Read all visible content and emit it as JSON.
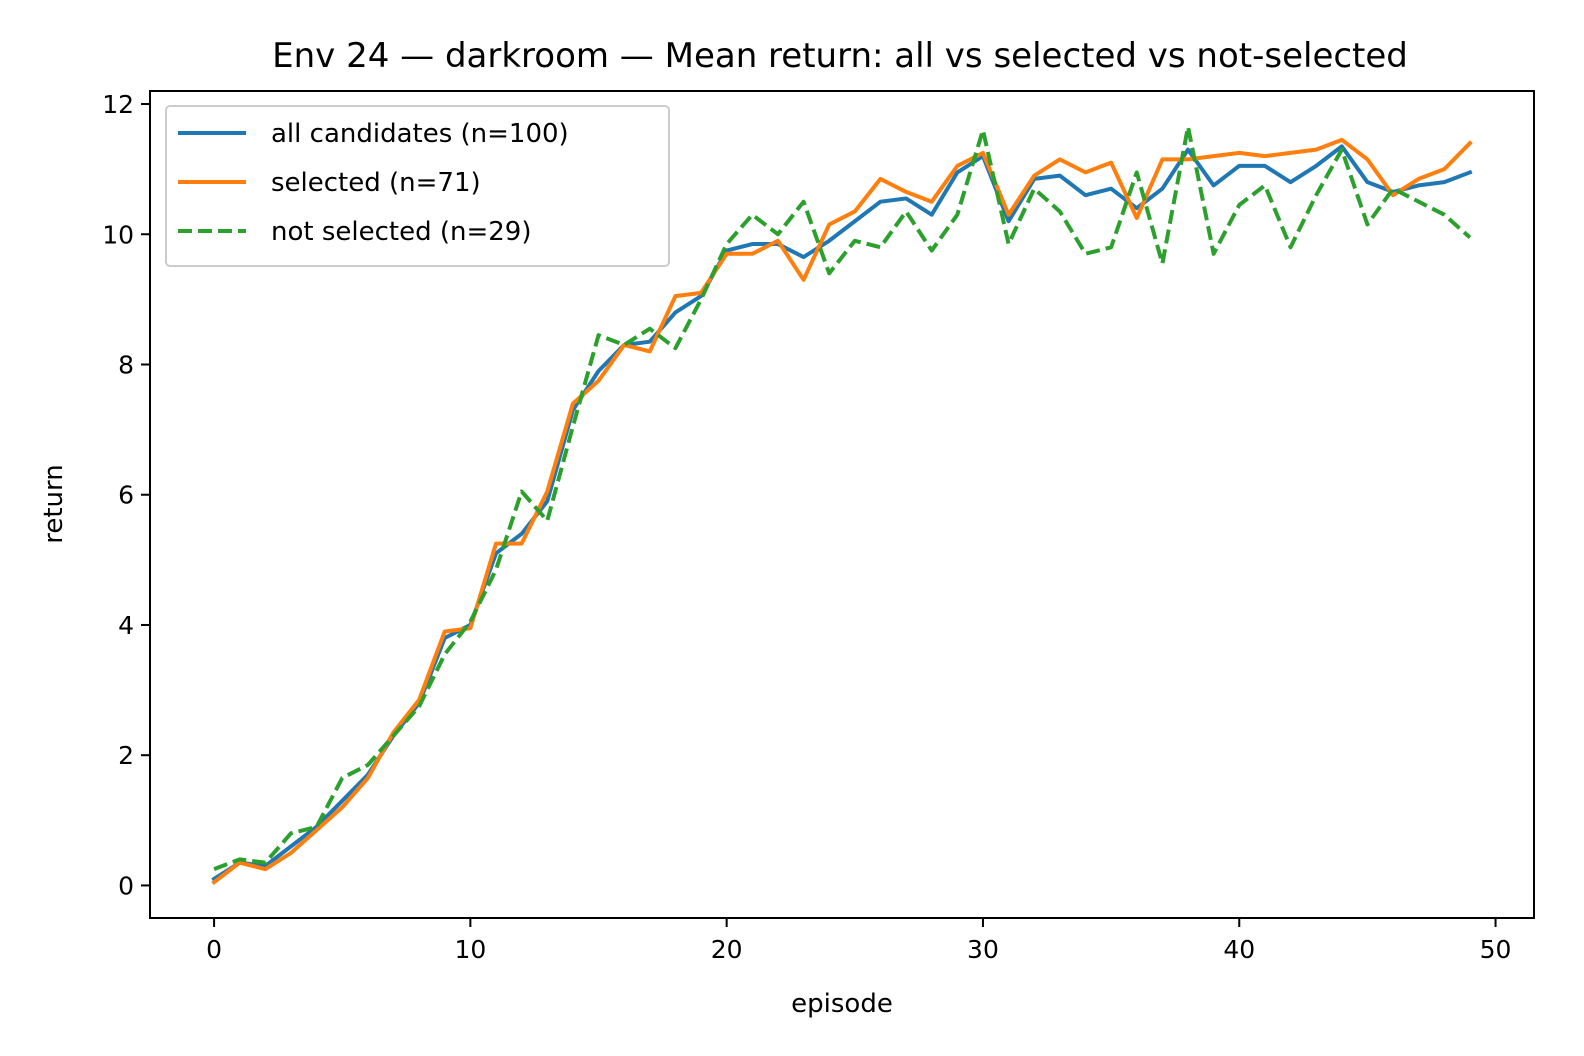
{
  "chart_data": {
    "type": "line",
    "title": "Env 24 — darkroom — Mean return: all vs selected vs not-selected",
    "xlabel": "episode",
    "ylabel": "return",
    "xlim": [
      -2.5,
      51.5
    ],
    "ylim": [
      -0.5,
      12.2
    ],
    "xticks": [
      0,
      10,
      20,
      30,
      40,
      50
    ],
    "yticks": [
      0,
      2,
      4,
      6,
      8,
      10,
      12
    ],
    "grid": false,
    "legend_position": "upper-left",
    "x": [
      0,
      1,
      2,
      3,
      4,
      5,
      6,
      7,
      8,
      9,
      10,
      11,
      12,
      13,
      14,
      15,
      16,
      17,
      18,
      19,
      20,
      21,
      22,
      23,
      24,
      25,
      26,
      27,
      28,
      29,
      30,
      31,
      32,
      33,
      34,
      35,
      36,
      37,
      38,
      39,
      40,
      41,
      42,
      43,
      44,
      45,
      46,
      47,
      48,
      49
    ],
    "series": [
      {
        "name": "all candidates (n=100)",
        "color": "#1f77b4",
        "style": "solid",
        "values": [
          0.1,
          0.35,
          0.3,
          0.6,
          0.9,
          1.3,
          1.7,
          2.3,
          2.8,
          3.8,
          4.0,
          5.1,
          5.4,
          5.9,
          7.3,
          7.9,
          8.3,
          8.35,
          8.8,
          9.05,
          9.75,
          9.85,
          9.85,
          9.65,
          9.9,
          10.2,
          10.5,
          10.55,
          10.3,
          10.95,
          11.2,
          10.2,
          10.85,
          10.9,
          10.6,
          10.7,
          10.4,
          10.7,
          11.3,
          10.75,
          11.05,
          11.05,
          10.8,
          11.05,
          11.35,
          10.8,
          10.65,
          10.75,
          10.8,
          10.95
        ]
      },
      {
        "name": "selected (n=71)",
        "color": "#ff7f0e",
        "style": "solid",
        "values": [
          0.05,
          0.35,
          0.25,
          0.5,
          0.85,
          1.2,
          1.65,
          2.35,
          2.85,
          3.9,
          3.95,
          5.25,
          5.25,
          6.05,
          7.4,
          7.75,
          8.3,
          8.2,
          9.05,
          9.1,
          9.7,
          9.7,
          9.9,
          9.3,
          10.15,
          10.35,
          10.85,
          10.65,
          10.5,
          11.05,
          11.25,
          10.3,
          10.9,
          11.15,
          10.95,
          11.1,
          10.25,
          11.15,
          11.15,
          11.2,
          11.25,
          11.2,
          11.25,
          11.3,
          11.45,
          11.15,
          10.6,
          10.85,
          11.0,
          11.4
        ]
      },
      {
        "name": "not selected (n=29)",
        "color": "#2ca02c",
        "style": "dashed",
        "values": [
          0.25,
          0.4,
          0.35,
          0.8,
          0.9,
          1.65,
          1.85,
          2.3,
          2.75,
          3.55,
          4.05,
          4.85,
          6.05,
          5.6,
          7.05,
          8.45,
          8.3,
          8.55,
          8.25,
          9.0,
          9.85,
          10.3,
          10.0,
          10.5,
          9.4,
          9.9,
          9.8,
          10.35,
          9.75,
          10.3,
          11.6,
          9.85,
          10.7,
          10.35,
          9.7,
          9.8,
          10.95,
          9.55,
          11.65,
          9.7,
          10.45,
          10.75,
          9.8,
          10.6,
          11.3,
          10.15,
          10.7,
          10.5,
          10.3,
          9.95
        ]
      }
    ]
  }
}
